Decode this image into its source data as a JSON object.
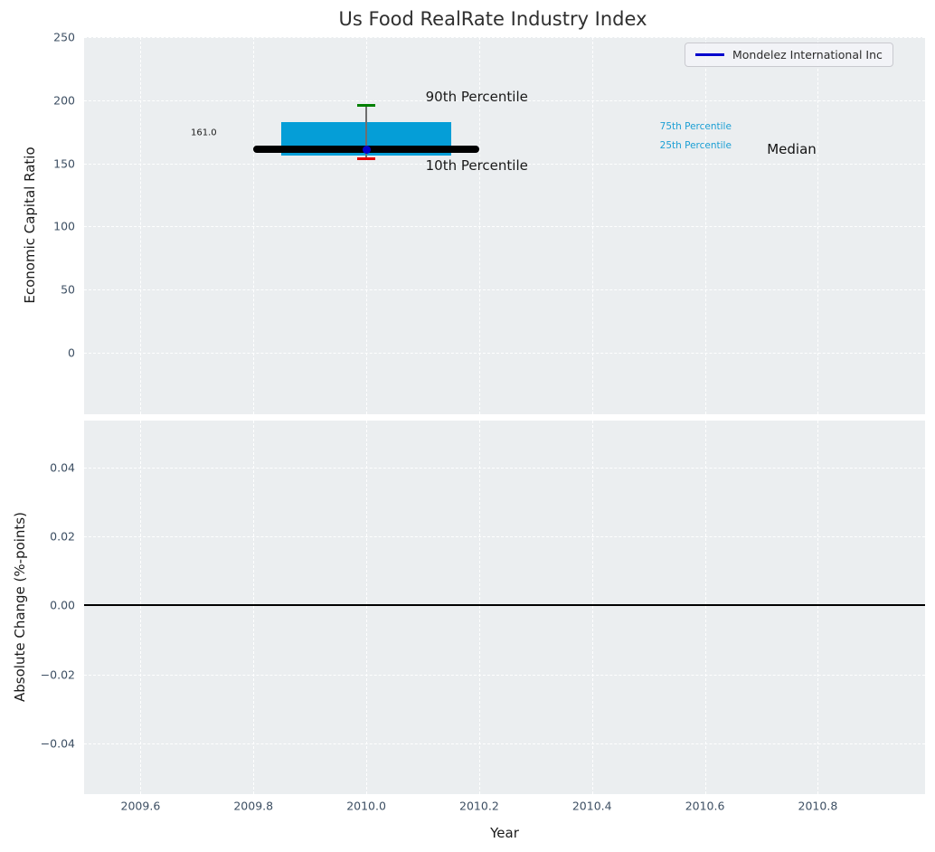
{
  "figure": {
    "title": "Us Food RealRate Industry Index"
  },
  "legend": {
    "label": "Mondelez International Inc",
    "line_color": "#0000cd"
  },
  "axis_labels": {
    "top_y": "Economic Capital Ratio",
    "bottom_y": "Absolute Change (%-points)",
    "x": "Year"
  },
  "xticks": [
    {
      "label": "2009.6",
      "v": 2009.6
    },
    {
      "label": "2009.8",
      "v": 2009.8
    },
    {
      "label": "2010.0",
      "v": 2010.0
    },
    {
      "label": "2010.2",
      "v": 2010.2
    },
    {
      "label": "2010.4",
      "v": 2010.4
    },
    {
      "label": "2010.6",
      "v": 2010.6
    },
    {
      "label": "2010.8",
      "v": 2010.8
    }
  ],
  "theme": {
    "plot_bg": "#ebeef0",
    "grid_color": "#ffffff",
    "tick_color": "#3d4f63",
    "title_color": "#2f2f2f"
  },
  "chart_data": [
    {
      "type": "box",
      "subplot": "top",
      "title": "Us Food RealRate Industry Index",
      "ylabel": "Economic Capital Ratio",
      "xlim": [
        2009.5,
        2010.99
      ],
      "ylim": [
        -48.6,
        250
      ],
      "grid": true,
      "yticks": [
        {
          "label": "250",
          "v": 250
        },
        {
          "label": "200",
          "v": 200
        },
        {
          "label": "150",
          "v": 150
        },
        {
          "label": "100",
          "v": 100
        },
        {
          "label": "50",
          "v": 50
        },
        {
          "label": "0",
          "v": 0
        }
      ],
      "x_center": 2010.0,
      "box_span": [
        2009.85,
        2010.15
      ],
      "median_span": [
        2009.8,
        2010.2
      ],
      "stats": {
        "p90": 196,
        "p75": 183,
        "median": 161,
        "p25": 156,
        "p10": 154
      },
      "series": [
        {
          "name": "Mondelez International Inc",
          "x": [
            2010.0
          ],
          "values": [
            161.0
          ]
        }
      ],
      "annotations": [
        {
          "name": "median-value-label",
          "text": "161.0",
          "x": 2009.712,
          "y": 174,
          "size": 10,
          "color": "#1a1a1a",
          "align": "center"
        },
        {
          "name": "p90-label",
          "text": "90th Percentile",
          "x": 2010.105,
          "y": 203,
          "size": 15,
          "color": "#1a1a1a",
          "align": "left"
        },
        {
          "name": "p10-label",
          "text": "10th Percentile",
          "x": 2010.105,
          "y": 148,
          "size": 15,
          "color": "#1a1a1a",
          "align": "left"
        },
        {
          "name": "p75-label",
          "text": "75th Percentile",
          "x": 2010.52,
          "y": 179,
          "size": 10.5,
          "color": "#1b9fd4",
          "align": "left"
        },
        {
          "name": "p25-label",
          "text": "25th Percentile",
          "x": 2010.52,
          "y": 164,
          "size": 10.5,
          "color": "#1b9fd4",
          "align": "left"
        },
        {
          "name": "median-label",
          "text": "Median",
          "x": 2010.71,
          "y": 161.5,
          "size": 15,
          "color": "#111111",
          "align": "left"
        }
      ],
      "colors": {
        "box_fill": "#059ed7",
        "median_line": "#000000",
        "whisker": "#6e6e6e",
        "p90_cap": "#008000",
        "p10_cap": "#e60000",
        "marker": "#0000cd"
      }
    },
    {
      "type": "line",
      "subplot": "bottom",
      "ylabel": "Absolute Change (%-points)",
      "xlabel": "Year",
      "xlim": [
        2009.5,
        2010.99
      ],
      "ylim": [
        -0.0547,
        0.0536
      ],
      "grid": true,
      "zero_line": 0.0,
      "zero_line_color": "#000000",
      "yticks": [
        {
          "label": "0.04",
          "v": 0.04
        },
        {
          "label": "0.02",
          "v": 0.02
        },
        {
          "label": "0.00",
          "v": 0
        },
        {
          "label": "−0.02",
          "v": -0.02
        },
        {
          "label": "−0.04",
          "v": -0.04
        }
      ],
      "series": []
    }
  ]
}
